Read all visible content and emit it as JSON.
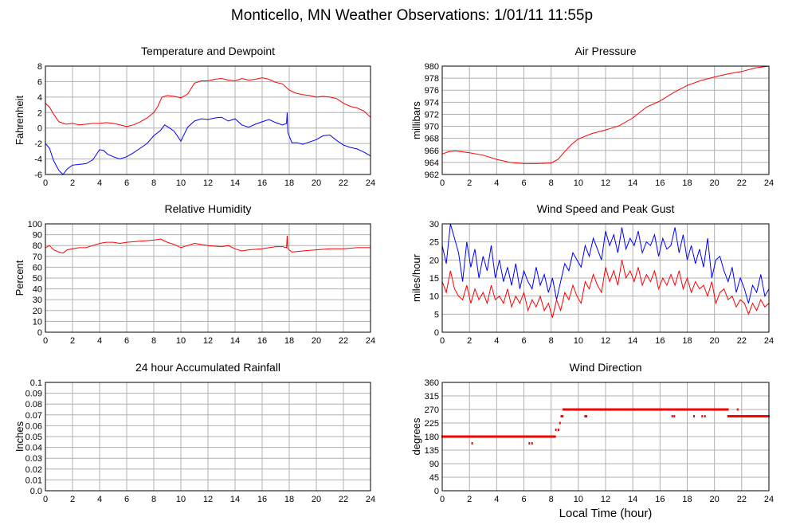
{
  "page": {
    "title": "Monticello, MN Weather Observations: 1/01/11 11:55p",
    "footer_xlabel": "Local Time (hour)"
  },
  "colors": {
    "primary": "#ff0000",
    "secondary": "#0000ff",
    "grid": "#b0b0b0",
    "frame": "#000000"
  },
  "chart_data": [
    {
      "id": "temp",
      "type": "line",
      "title": "Temperature and Dewpoint",
      "xlabel": "",
      "ylabel": "Fahrenheit",
      "xlim": [
        0,
        24
      ],
      "ylim": [
        -6,
        8
      ],
      "xticks": [
        0,
        2,
        4,
        6,
        8,
        10,
        12,
        14,
        16,
        18,
        20,
        22,
        24
      ],
      "yticks": [
        -6,
        -4,
        -2,
        0,
        2,
        4,
        6,
        8
      ],
      "series": [
        {
          "color": "#ff0000",
          "x": [
            0,
            0.3,
            0.6,
            1,
            1.5,
            2,
            2.5,
            3,
            3.5,
            4,
            4.5,
            5,
            5.5,
            6,
            6.5,
            7,
            7.5,
            8,
            8.3,
            8.6,
            9,
            9.5,
            10,
            10.5,
            11,
            11.5,
            12,
            12.5,
            13,
            13.5,
            14,
            14.5,
            15,
            15.5,
            16,
            16.5,
            17,
            17.5,
            18,
            18.5,
            19,
            19.5,
            20,
            20.5,
            21,
            21.5,
            22,
            22.5,
            23,
            23.5,
            24
          ],
          "y": [
            3.2,
            2.7,
            1.8,
            0.8,
            0.5,
            0.6,
            0.4,
            0.5,
            0.6,
            0.6,
            0.7,
            0.6,
            0.4,
            0.2,
            0.4,
            0.8,
            1.3,
            2.0,
            2.8,
            4.0,
            4.2,
            4.1,
            3.9,
            4.4,
            5.8,
            6.1,
            6.1,
            6.3,
            6.4,
            6.2,
            6.1,
            6.4,
            6.2,
            6.3,
            6.5,
            6.3,
            5.9,
            5.7,
            4.9,
            4.5,
            4.3,
            4.2,
            4.0,
            4.1,
            4.0,
            3.8,
            3.2,
            2.8,
            2.6,
            2.2,
            1.4
          ]
        },
        {
          "color": "#0000ff",
          "x": [
            0,
            0.3,
            0.6,
            1,
            1.3,
            1.6,
            2,
            2.5,
            3,
            3.5,
            4,
            4.3,
            4.6,
            5,
            5.5,
            6,
            6.5,
            7,
            7.5,
            8,
            8.5,
            8.8,
            9,
            9.5,
            10,
            10.5,
            11,
            11.5,
            12,
            12.5,
            13,
            13.5,
            14,
            14.5,
            15,
            15.5,
            16,
            16.5,
            17,
            17.5,
            17.8,
            17.85,
            17.9,
            18.2,
            18.6,
            19,
            19.5,
            20,
            20.5,
            21,
            21.5,
            22,
            22.5,
            23,
            23.5,
            24
          ],
          "y": [
            -2.0,
            -2.6,
            -4.2,
            -5.5,
            -6.0,
            -5.3,
            -4.8,
            -4.7,
            -4.6,
            -4.1,
            -2.8,
            -2.9,
            -3.4,
            -3.7,
            -4.0,
            -3.7,
            -3.2,
            -2.6,
            -2.0,
            -1.0,
            -0.3,
            0.4,
            0.2,
            -0.4,
            -1.7,
            0.1,
            0.9,
            1.2,
            1.1,
            1.3,
            1.4,
            0.9,
            1.2,
            0.4,
            0.1,
            0.5,
            0.8,
            1.1,
            0.7,
            0.4,
            0.6,
            2.0,
            -0.6,
            -1.9,
            -1.9,
            -2.1,
            -1.8,
            -1.5,
            -1.0,
            -0.9,
            -1.6,
            -2.2,
            -2.5,
            -2.7,
            -3.1,
            -3.6
          ]
        }
      ]
    },
    {
      "id": "pressure",
      "type": "line",
      "title": "Air Pressure",
      "xlabel": "",
      "ylabel": "millibars",
      "xlim": [
        0,
        24
      ],
      "ylim": [
        962,
        980
      ],
      "xticks": [
        0,
        2,
        4,
        6,
        8,
        10,
        12,
        14,
        16,
        18,
        20,
        22,
        24
      ],
      "yticks": [
        962,
        964,
        966,
        968,
        970,
        972,
        974,
        976,
        978,
        980
      ],
      "series": [
        {
          "color": "#ff0000",
          "x": [
            0,
            0.5,
            1,
            2,
            3,
            4,
            5,
            6,
            7,
            8,
            8.5,
            9,
            9.5,
            10,
            11,
            12,
            13,
            14,
            15,
            16,
            17,
            18,
            19,
            20,
            21,
            22,
            23,
            24
          ],
          "y": [
            965.4,
            965.8,
            965.9,
            965.6,
            965.2,
            964.5,
            964.0,
            963.8,
            963.8,
            963.9,
            964.5,
            965.8,
            967.0,
            967.9,
            968.8,
            969.4,
            970.1,
            971.4,
            973.2,
            974.2,
            975.6,
            976.8,
            977.6,
            978.2,
            978.7,
            979.1,
            979.7,
            980.0
          ]
        }
      ]
    },
    {
      "id": "humidity",
      "type": "line",
      "title": "Relative Humidity",
      "xlabel": "",
      "ylabel": "Percent",
      "xlim": [
        0,
        24
      ],
      "ylim": [
        0,
        100
      ],
      "xticks": [
        0,
        2,
        4,
        6,
        8,
        10,
        12,
        14,
        16,
        18,
        20,
        22,
        24
      ],
      "yticks": [
        0,
        10,
        20,
        30,
        40,
        50,
        60,
        70,
        80,
        90,
        100
      ],
      "series": [
        {
          "color": "#ff0000",
          "x": [
            0,
            0.3,
            0.6,
            1,
            1.3,
            1.6,
            2,
            2.5,
            3,
            3.5,
            4,
            4.5,
            5,
            5.5,
            6,
            7,
            8,
            8.5,
            9,
            9.5,
            10,
            10.5,
            11,
            12,
            13,
            13.5,
            14,
            14.5,
            15,
            16,
            17,
            17.5,
            17.8,
            17.85,
            17.9,
            18.2,
            19,
            20,
            21,
            22,
            23,
            24
          ],
          "y": [
            78,
            80,
            76,
            74,
            73,
            76,
            77,
            78,
            78,
            80,
            82,
            83,
            83,
            82,
            83,
            84,
            85,
            86,
            83,
            81,
            78,
            80,
            82,
            80,
            79,
            80,
            77,
            75,
            76,
            77,
            79,
            79,
            78,
            89,
            77,
            74,
            75,
            76,
            77,
            77,
            78,
            78
          ]
        }
      ]
    },
    {
      "id": "wind",
      "type": "line",
      "title": "Wind Speed and Peak Gust",
      "xlabel": "",
      "ylabel": "miles/hour",
      "xlim": [
        0,
        24
      ],
      "ylim": [
        0,
        30
      ],
      "xticks": [
        0,
        2,
        4,
        6,
        8,
        10,
        12,
        14,
        16,
        18,
        20,
        22,
        24
      ],
      "yticks": [
        0,
        5,
        10,
        15,
        20,
        25,
        30
      ],
      "series": [
        {
          "color": "#0000ff",
          "x": [
            0,
            0.3,
            0.6,
            0.9,
            1.2,
            1.5,
            1.8,
            2.1,
            2.4,
            2.7,
            3,
            3.3,
            3.6,
            3.9,
            4.2,
            4.5,
            4.8,
            5.1,
            5.4,
            5.7,
            6,
            6.3,
            6.6,
            6.9,
            7.2,
            7.5,
            7.8,
            8.1,
            8.4,
            8.7,
            9,
            9.3,
            9.6,
            9.9,
            10.2,
            10.5,
            10.8,
            11.1,
            11.4,
            11.7,
            12,
            12.3,
            12.6,
            12.9,
            13.2,
            13.5,
            13.8,
            14.1,
            14.4,
            14.7,
            15,
            15.3,
            15.6,
            15.9,
            16.2,
            16.5,
            16.8,
            17.1,
            17.4,
            17.7,
            18,
            18.3,
            18.6,
            18.9,
            19.2,
            19.5,
            19.8,
            20.1,
            20.4,
            20.7,
            21,
            21.3,
            21.6,
            21.9,
            22.2,
            22.5,
            22.8,
            23.1,
            23.4,
            23.7,
            24
          ],
          "y": [
            24,
            19,
            30,
            26,
            22,
            14,
            25,
            18,
            23,
            15,
            21,
            17,
            24,
            15,
            20,
            14,
            18,
            13,
            19,
            12,
            17,
            14,
            12,
            18,
            13,
            16,
            11,
            15,
            9,
            14,
            19,
            17,
            22,
            20,
            18,
            24,
            21,
            26,
            23,
            20,
            28,
            24,
            27,
            22,
            29,
            23,
            26,
            24,
            28,
            22,
            25,
            24,
            27,
            21,
            26,
            23,
            24,
            29,
            22,
            27,
            20,
            24,
            19,
            23,
            18,
            26,
            15,
            20,
            21,
            17,
            14,
            18,
            11,
            15,
            12,
            8,
            13,
            11,
            16,
            10,
            12
          ]
        },
        {
          "color": "#ff0000",
          "x": [
            0,
            0.3,
            0.6,
            0.9,
            1.2,
            1.5,
            1.8,
            2.1,
            2.4,
            2.7,
            3,
            3.3,
            3.6,
            3.9,
            4.2,
            4.5,
            4.8,
            5.1,
            5.4,
            5.7,
            6,
            6.3,
            6.6,
            6.9,
            7.2,
            7.5,
            7.8,
            8.1,
            8.4,
            8.7,
            9,
            9.3,
            9.6,
            9.9,
            10.2,
            10.5,
            10.8,
            11.1,
            11.4,
            11.7,
            12,
            12.3,
            12.6,
            12.9,
            13.2,
            13.5,
            13.8,
            14.1,
            14.4,
            14.7,
            15,
            15.3,
            15.6,
            15.9,
            16.2,
            16.5,
            16.8,
            17.1,
            17.4,
            17.7,
            18,
            18.3,
            18.6,
            18.9,
            19.2,
            19.5,
            19.8,
            20.1,
            20.4,
            20.7,
            21,
            21.3,
            21.6,
            21.9,
            22.2,
            22.5,
            22.8,
            23.1,
            23.4,
            23.7,
            24
          ],
          "y": [
            14,
            11,
            17,
            12,
            10,
            9,
            13,
            8,
            12,
            9,
            11,
            8,
            13,
            9,
            10,
            8,
            12,
            7,
            10,
            8,
            11,
            6,
            9,
            7,
            10,
            6,
            8,
            4,
            9,
            6,
            11,
            9,
            13,
            10,
            8,
            14,
            12,
            16,
            13,
            11,
            18,
            14,
            17,
            13,
            20,
            15,
            17,
            14,
            18,
            13,
            16,
            14,
            17,
            12,
            15,
            13,
            16,
            13,
            17,
            12,
            15,
            11,
            14,
            12,
            13,
            10,
            14,
            8,
            11,
            12,
            9,
            10,
            7,
            9,
            8,
            5,
            8,
            6,
            9,
            7,
            8
          ]
        }
      ]
    },
    {
      "id": "rain",
      "type": "line",
      "title": "24 hour Accumulated Rainfall",
      "xlabel": "",
      "ylabel": "Inches",
      "xlim": [
        0,
        24
      ],
      "ylim": [
        0,
        0.1
      ],
      "xticks": [
        0,
        2,
        4,
        6,
        8,
        10,
        12,
        14,
        16,
        18,
        20,
        22,
        24
      ],
      "yticks": [
        "0.0",
        "0.01",
        "0.02",
        "0.03",
        "0.04",
        "0.05",
        "0.06",
        "0.07",
        "0.08",
        "0.09",
        "0.1"
      ],
      "series": [
        {
          "color": "#ff0000",
          "x": [
            0,
            24
          ],
          "y": [
            0,
            0
          ]
        }
      ]
    },
    {
      "id": "direction",
      "type": "scatter",
      "title": "Wind Direction",
      "xlabel": "Local Time (hour)",
      "ylabel": "degrees",
      "xlim": [
        0,
        24
      ],
      "ylim": [
        0,
        360
      ],
      "xticks": [
        0,
        2,
        4,
        6,
        8,
        10,
        12,
        14,
        16,
        18,
        20,
        22,
        24
      ],
      "yticks": [
        0,
        45,
        90,
        135,
        180,
        225,
        270,
        315,
        360
      ],
      "runs": [
        {
          "x_start": 0,
          "x_end": 8.3,
          "y": 180
        },
        {
          "x_start": 8.9,
          "x_end": 21.0,
          "y": 270
        },
        {
          "x_start": 21.0,
          "x_end": 24,
          "y": 247.5
        }
      ],
      "points": [
        {
          "x": 2.2,
          "y": 157.5
        },
        {
          "x": 6.4,
          "y": 157.5
        },
        {
          "x": 6.6,
          "y": 157.5
        },
        {
          "x": 8.35,
          "y": 202.5
        },
        {
          "x": 8.55,
          "y": 202.5
        },
        {
          "x": 8.65,
          "y": 225
        },
        {
          "x": 8.75,
          "y": 247.5
        },
        {
          "x": 8.85,
          "y": 247.5
        },
        {
          "x": 10.5,
          "y": 247.5
        },
        {
          "x": 10.6,
          "y": 247.5
        },
        {
          "x": 16.9,
          "y": 247.5
        },
        {
          "x": 17.05,
          "y": 247.5
        },
        {
          "x": 18.5,
          "y": 247.5
        },
        {
          "x": 19.1,
          "y": 247.5
        },
        {
          "x": 19.3,
          "y": 247.5
        },
        {
          "x": 21.7,
          "y": 270
        }
      ]
    }
  ]
}
